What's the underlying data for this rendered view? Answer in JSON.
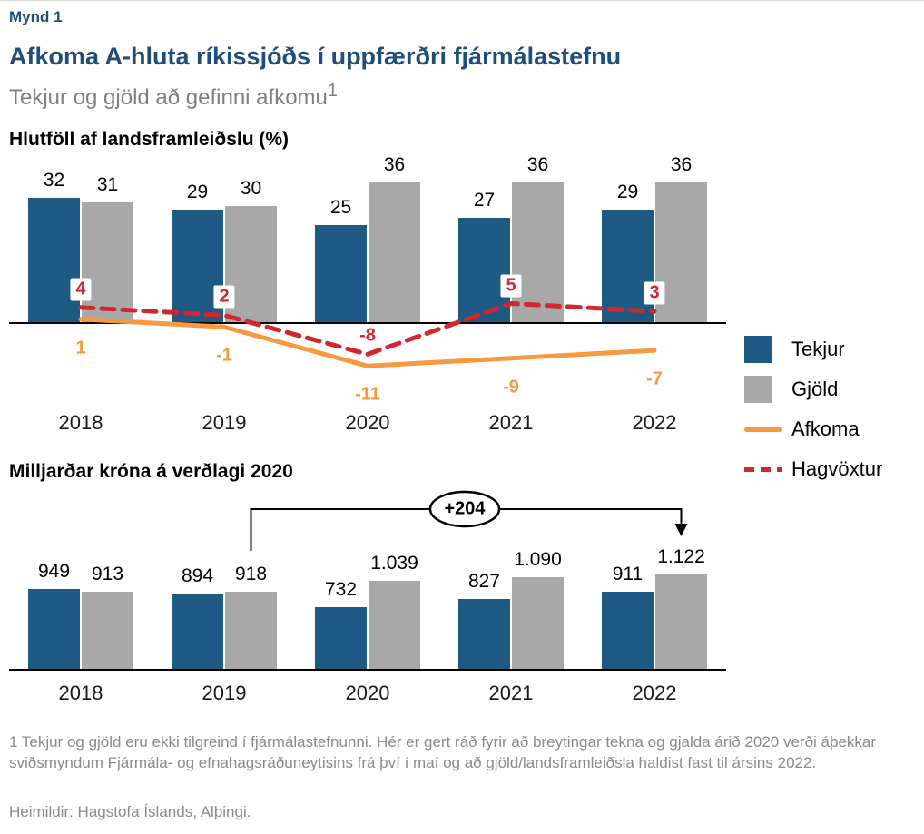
{
  "figure_label": "Mynd 1",
  "title": "Afkoma A-hluta ríkissjóðs í uppfærðri fjármálastefnu",
  "subtitle": "Tekjur og gjöld að gefinni afkomu",
  "subtitle_sup": "1",
  "colors": {
    "title_blue": "#1F4E79",
    "blue": "#1E5A84",
    "gray": "#A8A8A8",
    "orange": "#F6993F",
    "red": "#D02730",
    "muted": "#8A8A8A",
    "subtitle_gray": "#7F7F7F"
  },
  "legend": [
    {
      "label": "Tekjur",
      "swatch": "blue-square"
    },
    {
      "label": "Gjöld",
      "swatch": "gray-square"
    },
    {
      "label": "Afkoma",
      "swatch": "orange-line"
    },
    {
      "label": "Hagvöxtur",
      "swatch": "red-dashed-line"
    }
  ],
  "chart_data": [
    {
      "id": "share-of-gdp",
      "type": "bar+line",
      "title": "Hlutföll af landsframleiðslu (%)",
      "categories": [
        "2018",
        "2019",
        "2020",
        "2021",
        "2022"
      ],
      "series": [
        {
          "name": "Tekjur",
          "type": "bar",
          "color": "#1E5A84",
          "values": [
            32,
            29,
            25,
            27,
            29
          ]
        },
        {
          "name": "Gjöld",
          "type": "bar",
          "color": "#A8A8A8",
          "values": [
            31,
            30,
            36,
            36,
            36
          ]
        },
        {
          "name": "Afkoma",
          "type": "line",
          "dashed": false,
          "color": "#F6993F",
          "values": [
            1,
            -1,
            -11,
            -9,
            -7
          ]
        },
        {
          "name": "Hagvöxtur",
          "type": "line",
          "dashed": true,
          "color": "#D02730",
          "values": [
            4,
            2,
            -8,
            5,
            3
          ]
        }
      ],
      "ylim": [
        -15,
        40
      ],
      "grid": false,
      "legend_position": "right",
      "xlabel": "",
      "ylabel": "%"
    },
    {
      "id": "billions-kronur",
      "type": "bar",
      "title": "Milljarðar króna á verðlagi 2020",
      "categories": [
        "2018",
        "2019",
        "2020",
        "2021",
        "2022"
      ],
      "series": [
        {
          "name": "Tekjur",
          "type": "bar",
          "color": "#1E5A84",
          "values": [
            949,
            894,
            732,
            827,
            911
          ],
          "labels": [
            "949",
            "894",
            "732",
            "827",
            "911"
          ]
        },
        {
          "name": "Gjöld",
          "type": "bar",
          "color": "#A8A8A8",
          "values": [
            913,
            918,
            1039,
            1090,
            1122
          ],
          "labels": [
            "913",
            "918",
            "1.039",
            "1.090",
            "1.122"
          ]
        }
      ],
      "annotation": {
        "text": "+204",
        "from": "Gjöld 2019 (918)",
        "to": "Gjöld 2022 (1.122)"
      },
      "ylim": [
        0,
        1200
      ],
      "grid": false,
      "xlabel": "",
      "ylabel": "ma.kr."
    }
  ],
  "footnote": "1 Tekjur og gjöld eru ekki tilgreind í fjármálastefnunni. Hér er gert ráð fyrir að breytingar tekna og gjalda árið 2020 verði áþekkar sviðsmyndum Fjármála- og efnahagsráðuneytisins frá því í maí og að gjöld/landsframleiðsla haldist fast til ársins 2022.",
  "source": "Heimildir: Hagstofa Íslands, Alþingi."
}
